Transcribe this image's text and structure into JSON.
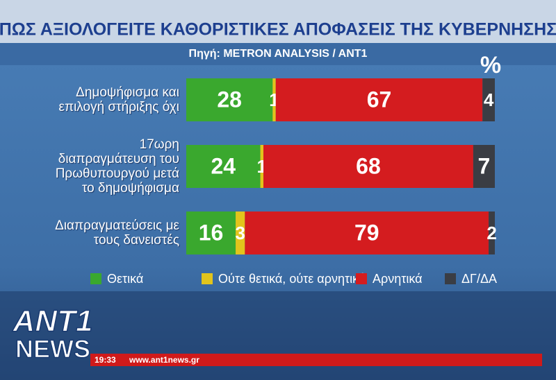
{
  "chart_data": {
    "type": "stacked-bar",
    "title": "ΠΩΣ ΑΞΙΟΛΟΓΕΙΤΕ ΚΑΘΟΡΙΣΤΙΚΕΣ ΑΠΟΦΑΣΕΙΣ ΤΗΣ ΚΥΒΕΡΝΗΣΗΣ",
    "subtitle": "Πηγή: METRON ANALYSIS / ANT1",
    "unit": "%",
    "categories": [
      "Δημοψήφισμα και επιλογή στήριξης όχι",
      "17ωρη διαπραγμάτευση του Πρωθυπουργού μετά το δημοψήφισμα",
      "Διαπραγματεύσεις με τους δανειστές"
    ],
    "xlim": [
      0,
      100
    ],
    "series": [
      {
        "name": "Θετικά",
        "color": "#3aa82e",
        "values": [
          28,
          24,
          16
        ]
      },
      {
        "name": "Ούτε θετικά, ούτε αρνητικά",
        "color": "#e2c41c",
        "values": [
          1,
          1,
          3
        ]
      },
      {
        "name": "Αρνητικά",
        "color": "#d41c1f",
        "values": [
          67,
          68,
          79
        ]
      },
      {
        "name": "ΔΓ/ΔΑ",
        "color": "#3a3d44",
        "values": [
          4,
          7,
          2
        ]
      }
    ]
  },
  "logo": {
    "top": "ANT1",
    "bottom": "NEWS"
  },
  "ticker": {
    "time": "19:33",
    "url": "www.ant1news.gr"
  }
}
